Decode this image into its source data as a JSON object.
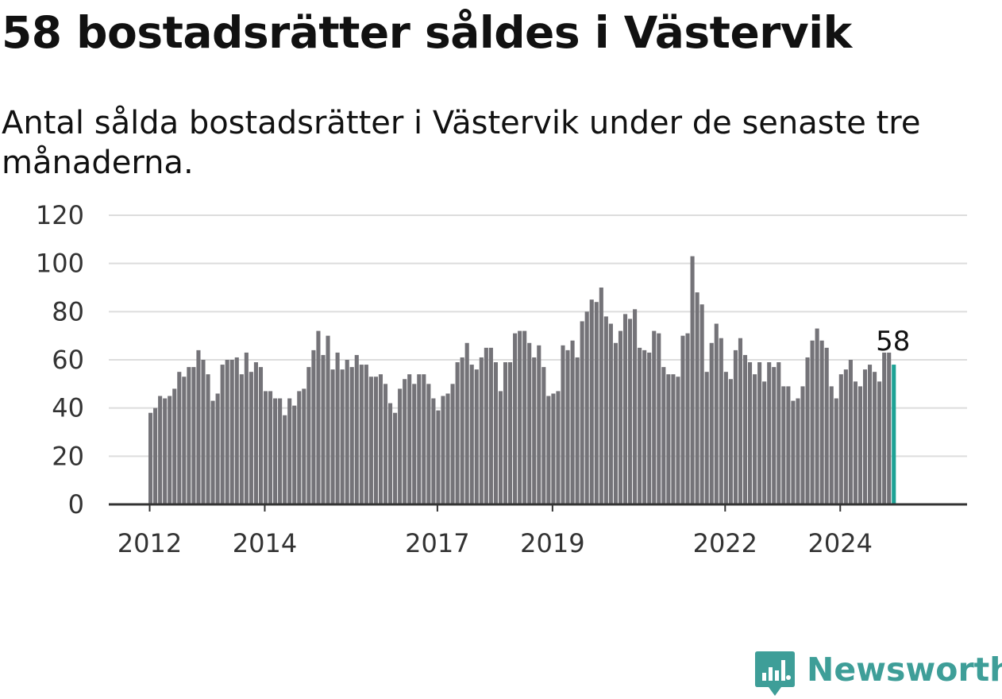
{
  "header": {
    "title": "58 bostadsrätter såldes i Västervik",
    "subtitle": "Antal sålda bostadsrätter i Västervik under de senaste tre månaderna."
  },
  "branding": {
    "name": "Newsworthy",
    "color": "#3e9e98",
    "icon": "newsworthy-logo-icon"
  },
  "colors": {
    "bar": "#747378",
    "highlight": "#1da295",
    "grid": "#dddddd",
    "axis": "#333333"
  },
  "chart_data": {
    "type": "bar",
    "title": "",
    "xlabel": "",
    "ylabel": "",
    "ylim": [
      0,
      120
    ],
    "yticks": [
      0,
      20,
      40,
      60,
      80,
      100,
      120
    ],
    "grid": true,
    "x_start": "2012-01",
    "x_tick_labels": [
      {
        "label": "2012",
        "index": 0
      },
      {
        "label": "2014",
        "index": 24
      },
      {
        "label": "2017",
        "index": 60
      },
      {
        "label": "2019",
        "index": 84
      },
      {
        "label": "2022",
        "index": 120
      },
      {
        "label": "2024",
        "index": 144
      }
    ],
    "values": [
      38,
      40,
      45,
      44,
      45,
      48,
      55,
      53,
      57,
      57,
      64,
      60,
      54,
      43,
      46,
      58,
      60,
      60,
      61,
      54,
      63,
      55,
      59,
      57,
      47,
      47,
      44,
      44,
      37,
      44,
      41,
      47,
      48,
      57,
      64,
      72,
      62,
      70,
      56,
      63,
      56,
      60,
      57,
      62,
      58,
      58,
      53,
      53,
      54,
      50,
      42,
      38,
      48,
      52,
      54,
      50,
      54,
      54,
      50,
      44,
      39,
      45,
      46,
      50,
      59,
      61,
      67,
      58,
      56,
      61,
      65,
      65,
      59,
      47,
      59,
      59,
      71,
      72,
      72,
      67,
      61,
      66,
      57,
      45,
      46,
      47,
      66,
      64,
      68,
      61,
      76,
      80,
      85,
      84,
      90,
      78,
      75,
      67,
      72,
      79,
      77,
      81,
      65,
      64,
      63,
      72,
      71,
      57,
      54,
      54,
      53,
      70,
      71,
      103,
      88,
      83,
      55,
      67,
      75,
      69,
      55,
      52,
      64,
      69,
      62,
      59,
      54,
      59,
      51,
      59,
      57,
      59,
      49,
      49,
      43,
      44,
      49,
      61,
      68,
      73,
      68,
      65,
      49,
      44,
      54,
      56,
      60,
      51,
      49,
      56,
      58,
      55,
      51,
      63,
      63,
      58
    ],
    "highlight_last": true,
    "annotation": "58"
  }
}
